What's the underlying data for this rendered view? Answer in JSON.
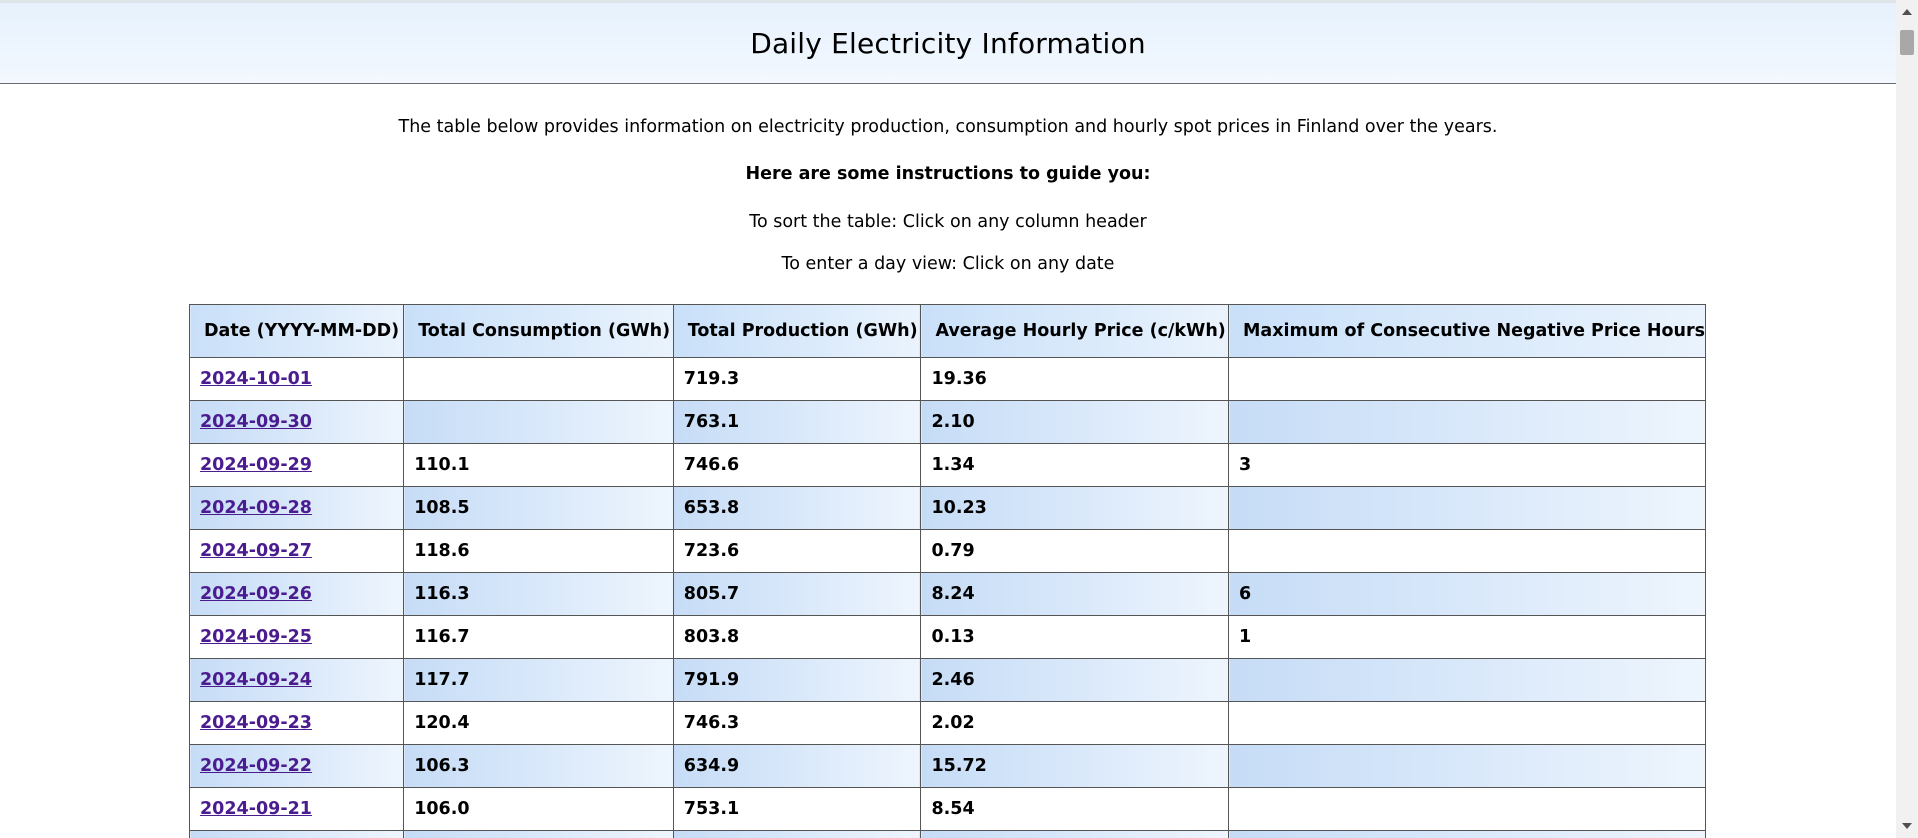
{
  "page": {
    "title": "Daily Electricity Information",
    "intro": "The table below provides information on electricity production, consumption and hourly spot prices in Finland over the years.",
    "instructions_heading": "Here are some instructions to guide you:",
    "instruction_sort": "To sort the table: Click on any column header",
    "instruction_day": "To enter a day view: Click on any date"
  },
  "table": {
    "headers": [
      "Date (YYYY-MM-DD)",
      "Total Consumption (GWh)",
      "Total Production (GWh)",
      "Average Hourly Price (c/kWh)",
      "Maximum of Consecutive Negative Price Hours"
    ],
    "rows": [
      {
        "date": "2024-10-01",
        "consumption": "",
        "production": "719.3",
        "price": "19.36",
        "neg_hours": ""
      },
      {
        "date": "2024-09-30",
        "consumption": "",
        "production": "763.1",
        "price": "2.10",
        "neg_hours": ""
      },
      {
        "date": "2024-09-29",
        "consumption": "110.1",
        "production": "746.6",
        "price": "1.34",
        "neg_hours": "3"
      },
      {
        "date": "2024-09-28",
        "consumption": "108.5",
        "production": "653.8",
        "price": "10.23",
        "neg_hours": ""
      },
      {
        "date": "2024-09-27",
        "consumption": "118.6",
        "production": "723.6",
        "price": "0.79",
        "neg_hours": ""
      },
      {
        "date": "2024-09-26",
        "consumption": "116.3",
        "production": "805.7",
        "price": "8.24",
        "neg_hours": "6"
      },
      {
        "date": "2024-09-25",
        "consumption": "116.7",
        "production": "803.8",
        "price": "0.13",
        "neg_hours": "1"
      },
      {
        "date": "2024-09-24",
        "consumption": "117.7",
        "production": "791.9",
        "price": "2.46",
        "neg_hours": ""
      },
      {
        "date": "2024-09-23",
        "consumption": "120.4",
        "production": "746.3",
        "price": "2.02",
        "neg_hours": ""
      },
      {
        "date": "2024-09-22",
        "consumption": "106.3",
        "production": "634.9",
        "price": "15.72",
        "neg_hours": ""
      },
      {
        "date": "2024-09-21",
        "consumption": "106.0",
        "production": "753.1",
        "price": "8.54",
        "neg_hours": ""
      },
      {
        "date": "",
        "consumption": "",
        "production": "",
        "price": "",
        "neg_hours": ""
      }
    ]
  }
}
